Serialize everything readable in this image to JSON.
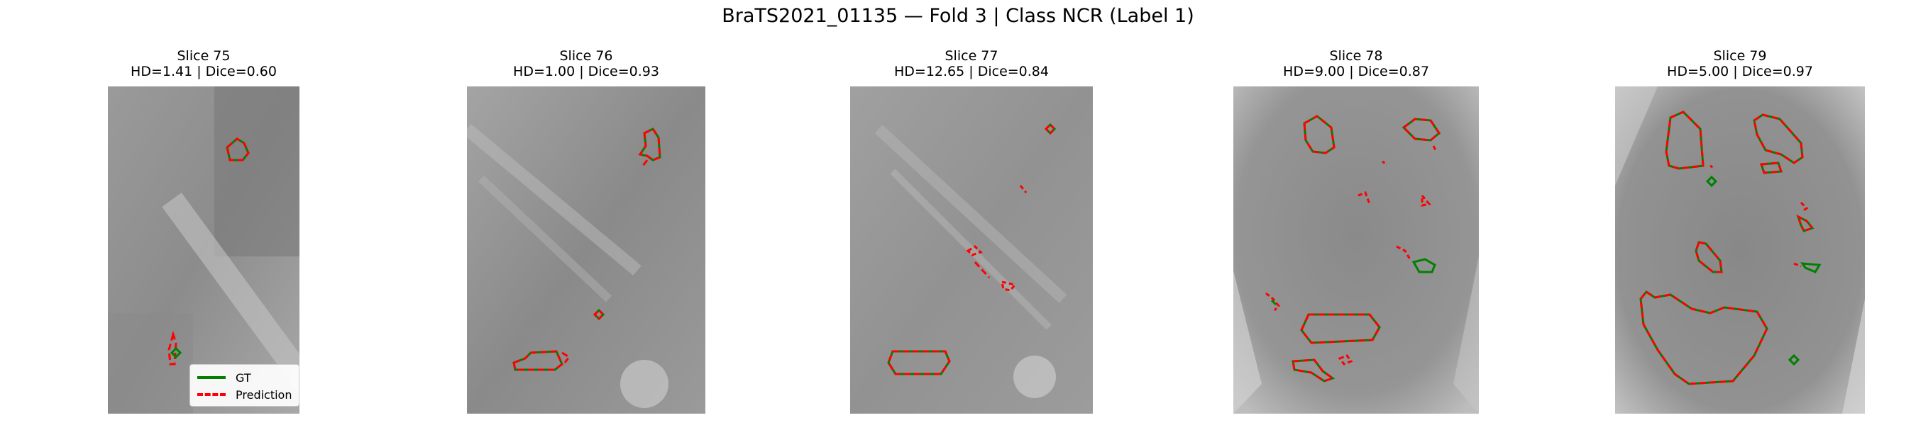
{
  "figure": {
    "title": "BraTS2021_01135 — Fold 3 | Class NCR (Label 1)",
    "colors": {
      "gt": "#008000",
      "prediction": "#ff0000"
    },
    "legend": {
      "placement": "lower-right of first panel",
      "items": [
        "GT",
        "Prediction"
      ]
    }
  },
  "chart_data": [
    {
      "type": "image",
      "title": "Slice 75",
      "subtitle": "HD=1.41 | Dice=0.60",
      "slice": 75,
      "hd": 1.41,
      "dice": 0.6
    },
    {
      "type": "image",
      "title": "Slice 76",
      "subtitle": "HD=1.00 | Dice=0.93",
      "slice": 76,
      "hd": 1.0,
      "dice": 0.93
    },
    {
      "type": "image",
      "title": "Slice 77",
      "subtitle": "HD=12.65 | Dice=0.84",
      "slice": 77,
      "hd": 12.65,
      "dice": 0.84
    },
    {
      "type": "image",
      "title": "Slice 78",
      "subtitle": "HD=9.00 | Dice=0.87",
      "slice": 78,
      "hd": 9.0,
      "dice": 0.87
    },
    {
      "type": "image",
      "title": "Slice 79",
      "subtitle": "HD=5.00 | Dice=0.97",
      "slice": 79,
      "hd": 5.0,
      "dice": 0.97
    }
  ]
}
